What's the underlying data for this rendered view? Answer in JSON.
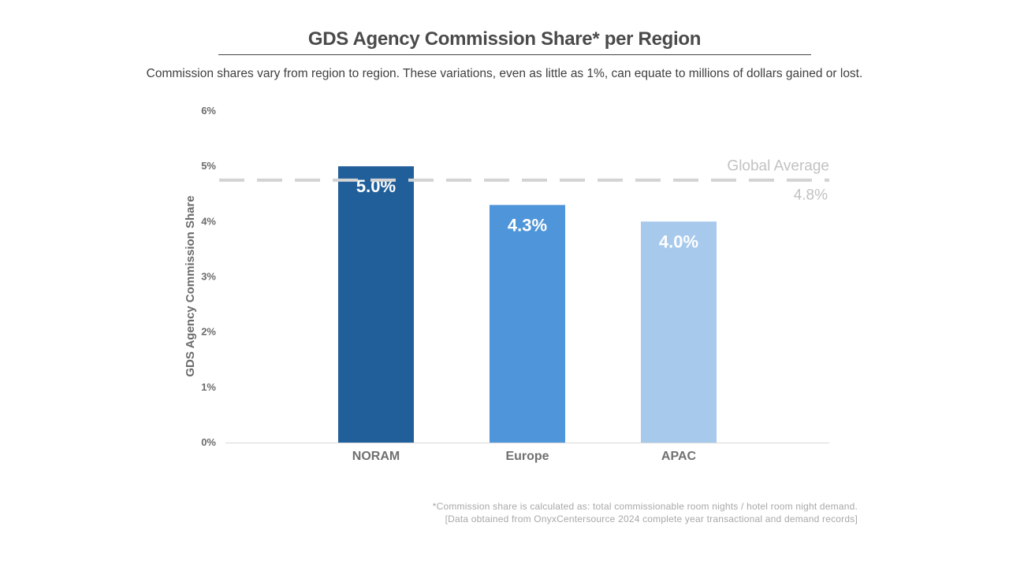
{
  "title": "GDS Agency Commission Share* per Region",
  "subtitle": "Commission shares vary from region to region. These variations, even as little as 1%, can equate to millions of dollars gained or lost.",
  "footnotes": [
    "*Commission share is calculated as: total commissionable room nights / hotel room night demand.",
    "[Data obtained from OnyxCentersource 2024 complete year transactional and demand records]"
  ],
  "chart_data": {
    "type": "bar",
    "categories": [
      "NORAM",
      "Europe",
      "APAC"
    ],
    "values": [
      5.0,
      4.3,
      4.0
    ],
    "data_labels": [
      "5.0%",
      "4.3%",
      "4.0%"
    ],
    "colors": [
      "#215f9a",
      "#4f95d9",
      "#a6c9ec"
    ],
    "ylabel": "GDS Agency Commission Share",
    "xlabel": "",
    "ylim": [
      0,
      6
    ],
    "yticks": [
      0,
      1,
      2,
      3,
      4,
      5,
      6
    ],
    "ytick_labels": [
      "0%",
      "1%",
      "2%",
      "3%",
      "4%",
      "5%",
      "6%"
    ],
    "grid": false,
    "reference_line": {
      "label": "Global Average",
      "value": 4.75,
      "value_label": "4.8%",
      "style": "dashed",
      "color": "#d3d3d3"
    }
  }
}
